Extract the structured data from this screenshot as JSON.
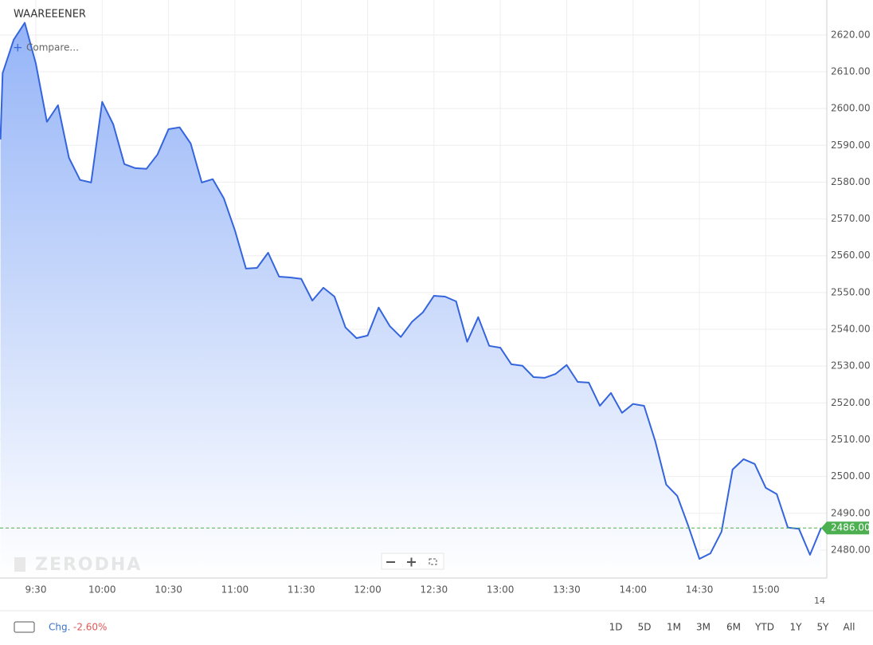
{
  "chart_data": {
    "type": "line",
    "title": "WAAREEENER",
    "compare_label": "Compare...",
    "watermark": "ZERODHA",
    "x": [
      554,
      555,
      560,
      565,
      570,
      575,
      580,
      585,
      590,
      595,
      600,
      605,
      610,
      615,
      620,
      625,
      630,
      635,
      640,
      645,
      650,
      655,
      660,
      665,
      670,
      675,
      680,
      685,
      690,
      695,
      700,
      705,
      710,
      715,
      720,
      725,
      730,
      735,
      740,
      745,
      750,
      755,
      760,
      765,
      770,
      775,
      780,
      785,
      790,
      795,
      800,
      805,
      810,
      815,
      820,
      825,
      830,
      835,
      840,
      845,
      850,
      855,
      860,
      865,
      870,
      875,
      880,
      885,
      890,
      895,
      900,
      905,
      910,
      915,
      920,
      925
    ],
    "series": [
      {
        "name": "WAAREEENER",
        "color": "#3565dd",
        "values": [
          2591.6,
          2609.6,
          2618.7,
          2623.3,
          2612.2,
          2596.4,
          2600.9,
          2586.6,
          2580.6,
          2579.9,
          2601.8,
          2595.7,
          2584.9,
          2583.8,
          2583.6,
          2587.5,
          2594.4,
          2594.9,
          2590.5,
          2579.9,
          2580.8,
          2575.6,
          2566.9,
          2556.5,
          2556.7,
          2560.8,
          2554.3,
          2554.1,
          2553.7,
          2547.8,
          2551.3,
          2548.9,
          2540.5,
          2537.6,
          2538.3,
          2545.9,
          2540.9,
          2537.9,
          2542.0,
          2544.6,
          2549.1,
          2548.9,
          2547.6,
          2536.6,
          2543.3,
          2535.5,
          2535.0,
          2530.5,
          2530.1,
          2527.0,
          2526.8,
          2527.9,
          2530.3,
          2525.7,
          2525.5,
          2519.2,
          2522.7,
          2517.3,
          2519.7,
          2519.2,
          2509.7,
          2497.8,
          2494.7,
          2486.5,
          2477.6,
          2479.1,
          2485.0,
          2501.9,
          2504.7,
          2503.4,
          2496.9,
          2495.2,
          2486.1,
          2485.8,
          2478.7,
          2486.0
        ]
      }
    ],
    "xlim": [
      553.8,
      927.6
    ],
    "xticks": [
      {
        "value": 570,
        "label": "9:30"
      },
      {
        "value": 600,
        "label": "10:00"
      },
      {
        "value": 630,
        "label": "10:30"
      },
      {
        "value": 660,
        "label": "11:00"
      },
      {
        "value": 690,
        "label": "11:30"
      },
      {
        "value": 720,
        "label": "12:00"
      },
      {
        "value": 750,
        "label": "12:30"
      },
      {
        "value": 780,
        "label": "13:00"
      },
      {
        "value": 810,
        "label": "13:30"
      },
      {
        "value": 840,
        "label": "14:00"
      },
      {
        "value": 870,
        "label": "14:30"
      },
      {
        "value": 900,
        "label": "15:00"
      }
    ],
    "x_corner_label": "14",
    "ylim": [
      2472.4,
      2629.5
    ],
    "yticks": [
      {
        "value": 2480,
        "label": "2480.00"
      },
      {
        "value": 2490,
        "label": "2490.00"
      },
      {
        "value": 2500,
        "label": "2500.00"
      },
      {
        "value": 2510,
        "label": "2510.00"
      },
      {
        "value": 2520,
        "label": "2520.00"
      },
      {
        "value": 2530,
        "label": "2530.00"
      },
      {
        "value": 2540,
        "label": "2540.00"
      },
      {
        "value": 2550,
        "label": "2550.00"
      },
      {
        "value": 2560,
        "label": "2560.00"
      },
      {
        "value": 2570,
        "label": "2570.00"
      },
      {
        "value": 2580,
        "label": "2580.00"
      },
      {
        "value": 2590,
        "label": "2590.00"
      },
      {
        "value": 2600,
        "label": "2600.00"
      },
      {
        "value": 2610,
        "label": "2610.00"
      },
      {
        "value": 2620,
        "label": "2620.00"
      }
    ],
    "grid": true,
    "last_price": {
      "value": 2486,
      "label": "2486.00",
      "color": "#4caf50"
    },
    "change_label": "Chg.",
    "change": {
      "value": -2.6,
      "label": "-2.60%"
    },
    "ranges": [
      "1D",
      "5D",
      "1M",
      "3M",
      "6M",
      "YTD",
      "1Y",
      "5Y",
      "All"
    ]
  }
}
